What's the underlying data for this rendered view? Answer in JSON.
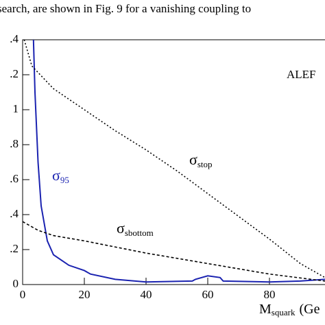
{
  "text": "search, are shown in Fig. 9 for a vanishing coupling to",
  "chart_data": {
    "type": "line",
    "experiment": "ALEF",
    "xlabel": {
      "main": "M",
      "sub": "squark",
      "rest": "(Ge"
    },
    "xlim": [
      0,
      98
    ],
    "ylim": [
      0,
      1.4
    ],
    "xticks": [
      0,
      20,
      40,
      60,
      80
    ],
    "yticks": [
      0,
      {
        "value": 0.2,
        "label": ".2"
      },
      {
        "value": 0.4,
        "label": ".4"
      },
      {
        "value": 0.6,
        "label": ".6"
      },
      {
        "value": 0.8,
        "label": ".8"
      },
      1,
      {
        "value": 1.2,
        "label": ".2"
      },
      {
        "value": 1.4,
        "label": ".4"
      }
    ],
    "series": [
      {
        "symbol": "σ",
        "sub": "95",
        "color": "#1a22b0",
        "style": "solid",
        "x": [
          3.5,
          4,
          5,
          6,
          8,
          10,
          15,
          20,
          22,
          30,
          40,
          55,
          56,
          60,
          64,
          65,
          80,
          90,
          98
        ],
        "values": [
          1.4,
          1.1,
          0.7,
          0.45,
          0.25,
          0.17,
          0.11,
          0.08,
          0.06,
          0.03,
          0.015,
          0.02,
          0.03,
          0.05,
          0.04,
          0.02,
          0.015,
          0.02,
          0.03
        ]
      },
      {
        "symbol": "σ",
        "sub": "stop",
        "color": "#000000",
        "style": "dotted",
        "x": [
          0.5,
          3,
          10,
          20,
          30,
          40,
          50,
          60,
          70,
          80,
          90,
          98
        ],
        "values": [
          1.4,
          1.25,
          1.12,
          1.0,
          0.88,
          0.77,
          0.65,
          0.52,
          0.39,
          0.26,
          0.12,
          0.04
        ]
      },
      {
        "symbol": "σ",
        "sub": "sbottom",
        "color": "#000000",
        "style": "dashed",
        "x": [
          0,
          5,
          10,
          20,
          40,
          60,
          80,
          98
        ],
        "values": [
          0.36,
          0.31,
          0.28,
          0.25,
          0.18,
          0.12,
          0.06,
          0.02
        ]
      }
    ]
  }
}
